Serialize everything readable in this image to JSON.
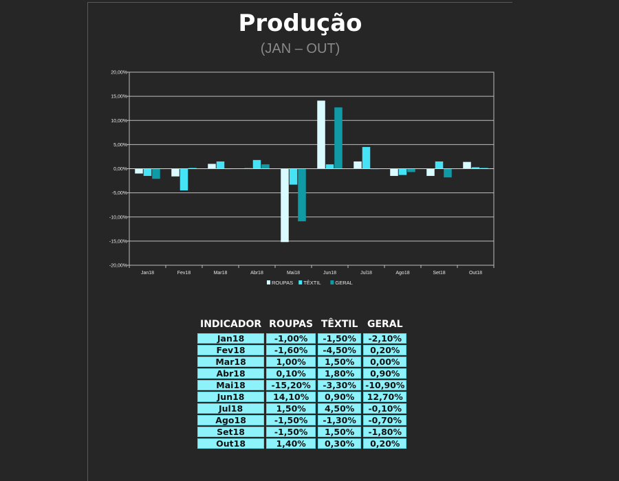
{
  "header": {
    "title": "Produção",
    "subtitle": "(JAN – OUT)"
  },
  "chart_data": {
    "type": "bar",
    "categories": [
      "Jan18",
      "Fev18",
      "Mar18",
      "Abr18",
      "Mai18",
      "Jun18",
      "Jul18",
      "Ago18",
      "Set18",
      "Out18"
    ],
    "series": [
      {
        "name": "ROUPAS",
        "color": "#d9fbff",
        "values": [
          -1.0,
          -1.6,
          1.0,
          0.1,
          -15.2,
          14.1,
          1.5,
          -1.5,
          -1.5,
          1.4
        ]
      },
      {
        "name": "TÊXTIL",
        "color": "#45e3f5",
        "values": [
          -1.5,
          -4.5,
          1.5,
          1.8,
          -3.3,
          0.9,
          4.5,
          -1.3,
          1.5,
          0.3
        ]
      },
      {
        "name": "GERAL",
        "color": "#0f9aa6",
        "values": [
          -2.1,
          0.2,
          0.0,
          0.9,
          -10.9,
          12.7,
          -0.1,
          -0.7,
          -1.8,
          0.2
        ]
      }
    ],
    "ylim": [
      -20,
      20
    ],
    "yticks": [
      20,
      15,
      10,
      5,
      0,
      -5,
      -10,
      -15,
      -20
    ],
    "ytick_labels": [
      "20,00%",
      "15,00%",
      "10,00%",
      "5,00%",
      "0,00%",
      "-5,00%",
      "-10,00%",
      "-15,00%",
      "-20,00%"
    ],
    "grid": true,
    "legend_position": "bottom"
  },
  "table": {
    "headers": [
      "INDICADOR",
      "ROUPAS",
      "TÊXTIL",
      "GERAL"
    ],
    "rows": [
      [
        "Jan18",
        "-1,00%",
        "-1,50%",
        "-2,10%"
      ],
      [
        "Fev18",
        "-1,60%",
        "-4,50%",
        "0,20%"
      ],
      [
        "Mar18",
        "1,00%",
        "1,50%",
        "0,00%"
      ],
      [
        "Abr18",
        "0,10%",
        "1,80%",
        "0,90%"
      ],
      [
        "Mai18",
        "-15,20%",
        "-3,30%",
        "-10,90%"
      ],
      [
        "Jun18",
        "14,10%",
        "0,90%",
        "12,70%"
      ],
      [
        "Jul18",
        "1,50%",
        "4,50%",
        "-0,10%"
      ],
      [
        "Ago18",
        "-1,50%",
        "-1,30%",
        "-0,70%"
      ],
      [
        "Set18",
        "-1,50%",
        "1,50%",
        "-1,80%"
      ],
      [
        "Out18",
        "1,40%",
        "0,30%",
        "0,20%"
      ]
    ]
  }
}
